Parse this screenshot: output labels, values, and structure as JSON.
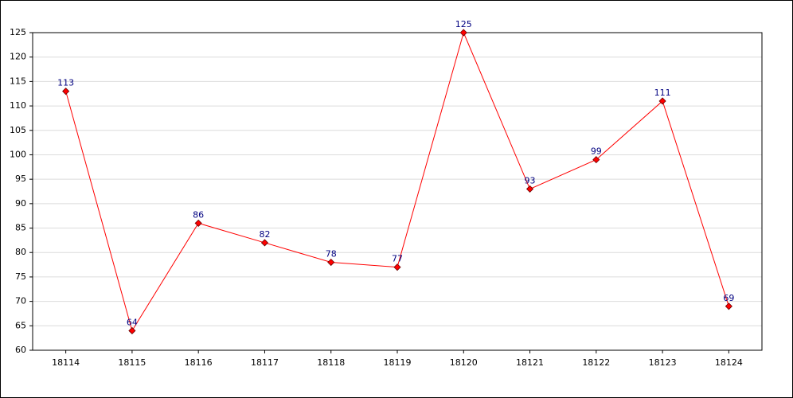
{
  "chart_data": {
    "type": "line",
    "categories": [
      "18114",
      "18115",
      "18116",
      "18117",
      "18118",
      "18119",
      "18120",
      "18121",
      "18122",
      "18123",
      "18124"
    ],
    "values": [
      113,
      64,
      86,
      82,
      78,
      77,
      125,
      93,
      99,
      111,
      69
    ],
    "color": "#ff0000",
    "ylim": [
      60,
      125
    ],
    "yticks": [
      60,
      65,
      70,
      75,
      80,
      85,
      90,
      95,
      100,
      105,
      110,
      115,
      120,
      125
    ],
    "grid": true
  }
}
